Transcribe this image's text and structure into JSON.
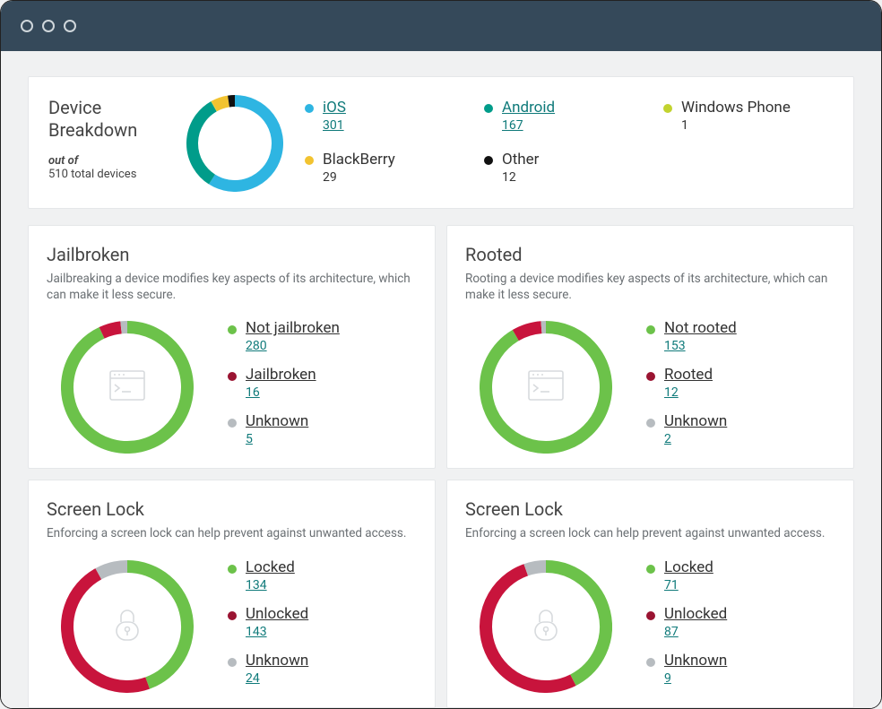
{
  "colors": {
    "titlebar": "#35495a",
    "page_bg": "#f0f1f2",
    "panel_bg": "#ffffff",
    "panel_border": "#e5e7e9",
    "text_heading": "#444444",
    "text_body": "#6a6f73",
    "link": "#0f7a7a",
    "icon_muted": "#d7dadd"
  },
  "breakdown": {
    "title_line1": "Device",
    "title_line2": "Breakdown",
    "outof_label": "out of",
    "total_text": "510 total devices",
    "donut": {
      "type": "donut",
      "thickness": 13,
      "segments": [
        {
          "label": "iOS",
          "value": 301,
          "color": "#2eb5e2"
        },
        {
          "label": "Android",
          "value": 167,
          "color": "#009c8a"
        },
        {
          "label": "Windows Phone",
          "value": 1,
          "color": "#c2d32f"
        },
        {
          "label": "BlackBerry",
          "value": 29,
          "color": "#f2c330"
        },
        {
          "label": "Other",
          "value": 12,
          "color": "#111111"
        }
      ]
    },
    "legend": [
      {
        "label": "iOS",
        "count": "301",
        "color": "#2eb5e2",
        "link": true
      },
      {
        "label": "Android",
        "count": "167",
        "color": "#009c8a",
        "link": true
      },
      {
        "label": "Windows Phone",
        "count": "1",
        "color": "#c2d32f",
        "link": false
      },
      {
        "label": "BlackBerry",
        "count": "29",
        "color": "#f2c330",
        "link": false
      },
      {
        "label": "Other",
        "count": "12",
        "color": "#111111",
        "link": false
      }
    ]
  },
  "cards": [
    {
      "id": "jailbroken",
      "title": "Jailbroken",
      "desc": "Jailbreaking a device modifies key aspects of its architecture, which can make it less secure.",
      "icon": "terminal",
      "donut": {
        "type": "donut",
        "thickness": 14,
        "segments": [
          {
            "label": "Not jailbroken",
            "value": 280,
            "color": "#6cc24a"
          },
          {
            "label": "Jailbroken",
            "value": 16,
            "color": "#c8143c"
          },
          {
            "label": "Unknown",
            "value": 5,
            "color": "#b7bcc0"
          }
        ]
      },
      "legend": [
        {
          "label": "Not jailbroken",
          "count": "280",
          "color": "#6cc24a"
        },
        {
          "label": "Jailbroken",
          "count": "16",
          "color": "#9a1432"
        },
        {
          "label": "Unknown",
          "count": "5",
          "color": "#b7bcc0"
        }
      ]
    },
    {
      "id": "rooted",
      "title": "Rooted",
      "desc": "Rooting a device modifies key aspects of its architecture, which can make it less secure.",
      "icon": "terminal",
      "donut": {
        "type": "donut",
        "thickness": 14,
        "segments": [
          {
            "label": "Not rooted",
            "value": 153,
            "color": "#6cc24a"
          },
          {
            "label": "Rooted",
            "value": 12,
            "color": "#c8143c"
          },
          {
            "label": "Unknown",
            "value": 2,
            "color": "#b7bcc0"
          }
        ]
      },
      "legend": [
        {
          "label": "Not rooted",
          "count": "153",
          "color": "#6cc24a"
        },
        {
          "label": "Rooted",
          "count": "12",
          "color": "#9a1432"
        },
        {
          "label": "Unknown",
          "count": "2",
          "color": "#b7bcc0"
        }
      ]
    },
    {
      "id": "screenlock-left",
      "title": "Screen Lock",
      "desc": "Enforcing a screen lock can help prevent against unwanted access.",
      "icon": "lock",
      "donut": {
        "type": "donut",
        "thickness": 14,
        "segments": [
          {
            "label": "Locked",
            "value": 134,
            "color": "#6cc24a"
          },
          {
            "label": "Unlocked",
            "value": 143,
            "color": "#c8143c"
          },
          {
            "label": "Unknown",
            "value": 24,
            "color": "#b7bcc0"
          }
        ]
      },
      "legend": [
        {
          "label": "Locked",
          "count": "134",
          "color": "#6cc24a"
        },
        {
          "label": "Unlocked",
          "count": "143",
          "color": "#9a1432"
        },
        {
          "label": "Unknown",
          "count": "24",
          "color": "#b7bcc0"
        }
      ]
    },
    {
      "id": "screenlock-right",
      "title": "Screen Lock",
      "desc": "Enforcing a screen lock can help prevent against unwanted access.",
      "icon": "lock",
      "donut": {
        "type": "donut",
        "thickness": 14,
        "segments": [
          {
            "label": "Locked",
            "value": 71,
            "color": "#6cc24a"
          },
          {
            "label": "Unlocked",
            "value": 87,
            "color": "#c8143c"
          },
          {
            "label": "Unknown",
            "value": 9,
            "color": "#b7bcc0"
          }
        ]
      },
      "legend": [
        {
          "label": "Locked",
          "count": "71",
          "color": "#6cc24a"
        },
        {
          "label": "Unlocked",
          "count": "87",
          "color": "#9a1432"
        },
        {
          "label": "Unknown",
          "count": "9",
          "color": "#b7bcc0"
        }
      ]
    }
  ]
}
